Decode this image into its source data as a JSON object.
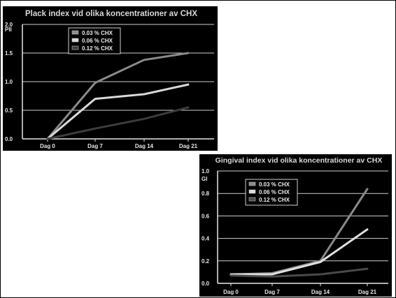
{
  "chart_data": [
    {
      "type": "line",
      "title": "Plack index vid olika koncentrationer av CHX",
      "ylabel": "PII",
      "xlabel": "",
      "categories": [
        "Dag 0",
        "Dag 7",
        "Dag 14",
        "Dag 21"
      ],
      "ylim": [
        0,
        2.0
      ],
      "yticks": [
        "0.0",
        "0.5",
        "1.0",
        "1.5",
        "2.0"
      ],
      "grid": true,
      "legend_position": "top-left",
      "series": [
        {
          "name": "0.03 % CHX",
          "values": [
            0.0,
            0.98,
            1.38,
            1.5
          ],
          "color": "#8a8a8a"
        },
        {
          "name": "0.06 % CHX",
          "values": [
            0.0,
            0.7,
            0.78,
            0.95
          ],
          "color": "#d8d8d8"
        },
        {
          "name": "0.12 % CHX",
          "values": [
            0.0,
            0.18,
            0.35,
            0.55
          ],
          "color": "#3c3c3c"
        }
      ]
    },
    {
      "type": "line",
      "title": "Gingival index vid olika koncentrationer av CHX",
      "ylabel": "GI",
      "xlabel": "",
      "categories": [
        "Dag 0",
        "Dag 7",
        "Dag 14",
        "Dag 21"
      ],
      "ylim": [
        0,
        1.0
      ],
      "yticks": [
        "0.0",
        "0.2",
        "0.4",
        "0.6",
        "0.8",
        "1.0"
      ],
      "grid": true,
      "legend_position": "top-center",
      "series": [
        {
          "name": "0.03 % CHX",
          "values": [
            0.08,
            0.09,
            0.2,
            0.84
          ],
          "color": "#8a8a8a"
        },
        {
          "name": "0.06 % CHX",
          "values": [
            0.08,
            0.08,
            0.19,
            0.48
          ],
          "color": "#e0e0e0"
        },
        {
          "name": "0.12 % CHX",
          "values": [
            0.07,
            0.06,
            0.08,
            0.13
          ],
          "color": "#4a4a4a"
        }
      ]
    }
  ]
}
